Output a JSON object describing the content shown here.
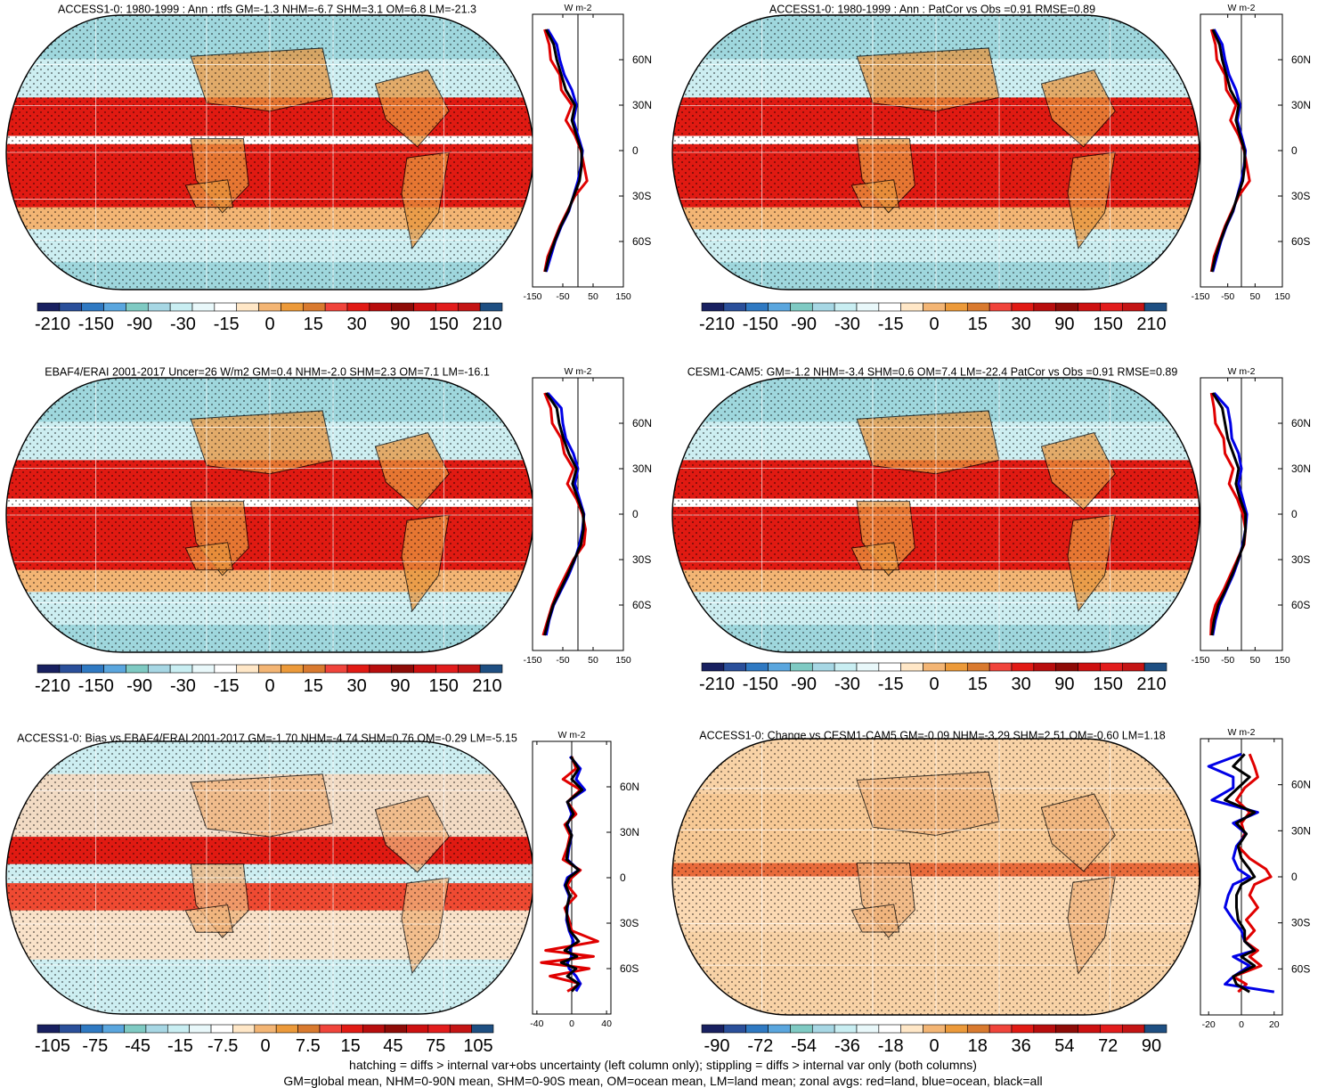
{
  "footer": {
    "line1": "hatching = diffs > internal var+obs uncertainty (left column only); stippling = diffs > internal var only (both columns)",
    "line2": "GM=global mean, NHM=0-90N mean, SHM=0-90S mean, OM=ocean mean, LM=land mean; zonal avgs: red=land, blue=ocean, black=all"
  },
  "chart_data": [
    {
      "type": "heatmap",
      "title": "ACCESS1-0: 1980-1999 : Ann : rtfs GM=-1.3 NHM=-6.7 SHM=3.1 OM=6.8 LM=-21.3",
      "colorbar_labels": [
        "-210",
        "-150",
        "-90",
        "-30",
        "-15",
        "0",
        "15",
        "30",
        "90",
        "150",
        "210"
      ],
      "zonal_unit": "W m-2",
      "zonal_xticks": [
        "-150",
        "-50",
        "50",
        "150"
      ],
      "zonal_xlim": [
        -150,
        150
      ],
      "lat_labels": [
        "60N",
        "30N",
        "0",
        "30S",
        "60S"
      ],
      "zonal_series": [
        {
          "color": "#e00000",
          "lat": [
            80,
            70,
            60,
            50,
            40,
            30,
            20,
            10,
            0,
            -10,
            -20,
            -30,
            -40,
            -50,
            -60,
            -70,
            -80
          ],
          "values": [
            -110,
            -95,
            -90,
            -60,
            -55,
            -20,
            -40,
            -10,
            10,
            20,
            30,
            -10,
            -35,
            -60,
            -80,
            -100,
            -110
          ]
        },
        {
          "color": "#0000e6",
          "lat": [
            80,
            70,
            60,
            50,
            40,
            30,
            20,
            10,
            0,
            -10,
            -20,
            -30,
            -40,
            -50,
            -60,
            -70,
            -80
          ],
          "values": [
            -100,
            -70,
            -60,
            -45,
            -20,
            -5,
            -15,
            0,
            15,
            10,
            0,
            -15,
            -30,
            -55,
            -75,
            -90,
            -105
          ]
        },
        {
          "color": "#000000",
          "lat": [
            80,
            70,
            60,
            50,
            40,
            30,
            20,
            10,
            0,
            -10,
            -20,
            -30,
            -40,
            -50,
            -60,
            -70,
            -80
          ],
          "values": [
            -105,
            -80,
            -70,
            -55,
            -40,
            -10,
            -20,
            -5,
            12,
            12,
            5,
            -14,
            -32,
            -57,
            -77,
            -95,
            -108
          ]
        }
      ]
    },
    {
      "type": "heatmap",
      "title": "ACCESS1-0: 1980-1999 : Ann : PatCor vs Obs =0.91 RMSE=0.89",
      "colorbar_labels": [
        "-210",
        "-150",
        "-90",
        "-30",
        "-15",
        "0",
        "15",
        "30",
        "90",
        "150",
        "210"
      ],
      "zonal_unit": "W m-2",
      "zonal_xticks": [
        "-150",
        "-50",
        "50",
        "150"
      ],
      "zonal_xlim": [
        -150,
        150
      ],
      "lat_labels": [
        "60N",
        "30N",
        "0",
        "30S",
        "60S"
      ],
      "zonal_series": [
        {
          "color": "#e00000",
          "lat": [
            80,
            70,
            60,
            50,
            40,
            30,
            20,
            10,
            0,
            -10,
            -20,
            -30,
            -40,
            -50,
            -60,
            -70,
            -80
          ],
          "values": [
            -110,
            -95,
            -90,
            -60,
            -55,
            -20,
            -40,
            -10,
            10,
            20,
            30,
            -10,
            -35,
            -60,
            -80,
            -100,
            -110
          ]
        },
        {
          "color": "#0000e6",
          "lat": [
            80,
            70,
            60,
            50,
            40,
            30,
            20,
            10,
            0,
            -10,
            -20,
            -30,
            -40,
            -50,
            -60,
            -70,
            -80
          ],
          "values": [
            -100,
            -70,
            -60,
            -45,
            -20,
            -5,
            -15,
            0,
            15,
            10,
            0,
            -15,
            -30,
            -55,
            -75,
            -90,
            -105
          ]
        },
        {
          "color": "#000000",
          "lat": [
            80,
            70,
            60,
            50,
            40,
            30,
            20,
            10,
            0,
            -10,
            -20,
            -30,
            -40,
            -50,
            -60,
            -70,
            -80
          ],
          "values": [
            -105,
            -80,
            -70,
            -55,
            -40,
            -10,
            -20,
            -5,
            12,
            12,
            5,
            -14,
            -32,
            -57,
            -77,
            -95,
            -108
          ]
        }
      ]
    },
    {
      "type": "heatmap",
      "title": "EBAF4/ERAI 2001-2017 Uncer=26 W/m2 GM=0.4 NHM=-2.0 SHM=2.3 OM=7.1 LM=-16.1",
      "colorbar_labels": [
        "-210",
        "-150",
        "-90",
        "-30",
        "-15",
        "0",
        "15",
        "30",
        "90",
        "150",
        "210"
      ],
      "zonal_unit": "W m-2",
      "zonal_xticks": [
        "-150",
        "-50",
        "50",
        "150"
      ],
      "zonal_xlim": [
        -150,
        150
      ],
      "lat_labels": [
        "60N",
        "30N",
        "0",
        "30S",
        "60S"
      ],
      "zonal_series": [
        {
          "color": "#e00000",
          "lat": [
            80,
            70,
            60,
            50,
            40,
            30,
            20,
            10,
            0,
            -10,
            -20,
            -30,
            -40,
            -50,
            -60,
            -70,
            -80
          ],
          "values": [
            -110,
            -90,
            -85,
            -55,
            -45,
            -15,
            -35,
            -5,
            15,
            25,
            20,
            -15,
            -40,
            -65,
            -85,
            -100,
            -115
          ]
        },
        {
          "color": "#0000e6",
          "lat": [
            80,
            70,
            60,
            50,
            40,
            30,
            20,
            10,
            0,
            -10,
            -20,
            -30,
            -40,
            -50,
            -60,
            -70,
            -80
          ],
          "values": [
            -100,
            -55,
            -50,
            -40,
            -15,
            0,
            -10,
            5,
            20,
            15,
            5,
            -10,
            -30,
            -55,
            -80,
            -95,
            -105
          ]
        },
        {
          "color": "#000000",
          "lat": [
            80,
            70,
            60,
            50,
            40,
            30,
            20,
            10,
            0,
            -10,
            -20,
            -30,
            -40,
            -50,
            -60,
            -70,
            -80
          ],
          "values": [
            -105,
            -70,
            -62,
            -48,
            -30,
            -5,
            -18,
            0,
            18,
            18,
            10,
            -12,
            -34,
            -58,
            -82,
            -97,
            -110
          ]
        }
      ]
    },
    {
      "type": "heatmap",
      "title": "CESM1-CAM5: GM=-1.2 NHM=-3.4 SHM=0.6 OM=7.4 LM=-22.4 PatCor vs Obs =0.91 RMSE=0.89",
      "colorbar_labels": [
        "-210",
        "-150",
        "-90",
        "-30",
        "-15",
        "0",
        "15",
        "30",
        "90",
        "150",
        "210"
      ],
      "zonal_unit": "W m-2",
      "zonal_xticks": [
        "-150",
        "-50",
        "50",
        "150"
      ],
      "zonal_xlim": [
        -150,
        150
      ],
      "lat_labels": [
        "60N",
        "30N",
        "0",
        "30S",
        "60S"
      ],
      "zonal_series": [
        {
          "color": "#e00000",
          "lat": [
            80,
            70,
            60,
            50,
            40,
            30,
            20,
            10,
            0,
            -10,
            -20,
            -30,
            -40,
            -50,
            -60,
            -70,
            -80
          ],
          "values": [
            -110,
            -100,
            -95,
            -65,
            -60,
            -30,
            -45,
            -15,
            5,
            15,
            10,
            -15,
            -40,
            -65,
            -95,
            -110,
            -112
          ]
        },
        {
          "color": "#0000e6",
          "lat": [
            80,
            70,
            60,
            50,
            40,
            30,
            20,
            10,
            0,
            -10,
            -20,
            -30,
            -40,
            -50,
            -60,
            -70,
            -80
          ],
          "values": [
            -100,
            -50,
            -40,
            -35,
            -10,
            0,
            -10,
            5,
            20,
            15,
            5,
            -10,
            -30,
            -55,
            -80,
            -95,
            -105
          ]
        },
        {
          "color": "#000000",
          "lat": [
            80,
            70,
            60,
            50,
            40,
            30,
            20,
            10,
            0,
            -10,
            -20,
            -30,
            -40,
            -50,
            -60,
            -70,
            -80
          ],
          "values": [
            -105,
            -70,
            -60,
            -50,
            -30,
            -10,
            -20,
            -5,
            15,
            15,
            8,
            -12,
            -34,
            -58,
            -85,
            -100,
            -108
          ]
        }
      ]
    },
    {
      "type": "heatmap",
      "title": "ACCESS1-0: Bias vs EBAF4/ERAI 2001-2017 GM=-1.70 NHM=-4.74 SHM=0.76 OM=-0.29 LM=-5.15",
      "colorbar_labels": [
        "-105",
        "-75",
        "-45",
        "-15",
        "-7.5",
        "0",
        "7.5",
        "15",
        "45",
        "75",
        "105"
      ],
      "zonal_unit": "W m-2",
      "zonal_xticks": [
        "-40",
        "0",
        "40"
      ],
      "zonal_xlim": [
        -45,
        45
      ],
      "lat_labels": [
        "60N",
        "30N",
        "0",
        "30S",
        "60S"
      ],
      "zonal_series": [
        {
          "color": "#e00000",
          "lat": [
            80,
            72,
            65,
            58,
            50,
            42,
            35,
            28,
            20,
            12,
            5,
            0,
            -5,
            -12,
            -20,
            -28,
            -35,
            -42,
            -48,
            -52,
            -56,
            -60,
            -65,
            -70,
            -75
          ],
          "values": [
            0,
            5,
            -10,
            10,
            -5,
            5,
            -8,
            -2,
            -5,
            -10,
            10,
            0,
            -5,
            5,
            -8,
            -3,
            0,
            30,
            -30,
            25,
            -35,
            20,
            -25,
            10,
            -5
          ]
        },
        {
          "color": "#0000e6",
          "lat": [
            80,
            72,
            65,
            58,
            50,
            42,
            35,
            28,
            20,
            12,
            5,
            0,
            -5,
            -12,
            -20,
            -28,
            -35,
            -42,
            -48,
            -52,
            -56,
            -60,
            -65,
            -70,
            -75
          ],
          "values": [
            -2,
            10,
            5,
            15,
            -5,
            0,
            -5,
            0,
            -3,
            -5,
            8,
            -5,
            -8,
            -3,
            -5,
            -6,
            -3,
            2,
            -2,
            0,
            -5,
            -3,
            5,
            10,
            5
          ]
        },
        {
          "color": "#000000",
          "lat": [
            80,
            72,
            65,
            58,
            50,
            42,
            35,
            28,
            20,
            12,
            5,
            0,
            -5,
            -12,
            -20,
            -28,
            -35,
            -42,
            -48,
            -52,
            -56,
            -60,
            -65,
            -70,
            -75
          ],
          "values": [
            -1,
            8,
            0,
            12,
            -5,
            2,
            -6,
            0,
            -4,
            -6,
            8,
            -3,
            -7,
            -2,
            -6,
            -5,
            -2,
            8,
            -8,
            6,
            -12,
            5,
            -5,
            8,
            0
          ]
        }
      ]
    },
    {
      "type": "heatmap",
      "title": "ACCESS1-0: Change vs CESM1-CAM5 GM=-0.09 NHM=-3.29 SHM=2.51 OM=-0.60 LM=1.18",
      "colorbar_labels": [
        "-90",
        "-72",
        "-54",
        "-36",
        "-18",
        "0",
        "18",
        "36",
        "54",
        "72",
        "90"
      ],
      "zonal_unit": "W m-2",
      "zonal_xticks": [
        "-20",
        "0",
        "20"
      ],
      "zonal_xlim": [
        -25,
        25
      ],
      "lat_labels": [
        "60N",
        "30N",
        "0",
        "30S",
        "60S"
      ],
      "zonal_series": [
        {
          "color": "#e00000",
          "lat": [
            80,
            72,
            65,
            58,
            50,
            42,
            35,
            28,
            20,
            12,
            5,
            0,
            -5,
            -12,
            -20,
            -28,
            -35,
            -42,
            -48,
            -52,
            -58,
            -65,
            -70,
            -75
          ],
          "values": [
            5,
            8,
            10,
            2,
            -3,
            5,
            0,
            2,
            -2,
            5,
            15,
            18,
            8,
            5,
            10,
            3,
            8,
            2,
            10,
            5,
            12,
            -5,
            3,
            -2
          ]
        },
        {
          "color": "#0000e6",
          "lat": [
            80,
            72,
            65,
            58,
            50,
            42,
            35,
            28,
            20,
            12,
            5,
            0,
            -5,
            -12,
            -20,
            -28,
            -35,
            -42,
            -48,
            -52,
            -58,
            -65,
            -70,
            -75
          ],
          "values": [
            0,
            -20,
            -5,
            -5,
            -18,
            10,
            -5,
            3,
            -3,
            -5,
            -2,
            5,
            -5,
            -8,
            -10,
            -5,
            0,
            2,
            8,
            -5,
            5,
            -5,
            -10,
            20
          ]
        },
        {
          "color": "#000000",
          "lat": [
            80,
            72,
            65,
            58,
            50,
            42,
            35,
            28,
            20,
            12,
            5,
            0,
            -5,
            -12,
            -20,
            -28,
            -35,
            -42,
            -48,
            -52,
            -58,
            -65,
            -70,
            -75
          ],
          "values": [
            2,
            -5,
            5,
            -2,
            -10,
            8,
            -3,
            3,
            -2,
            0,
            5,
            8,
            0,
            -3,
            -3,
            -2,
            2,
            2,
            8,
            0,
            8,
            -5,
            -3,
            5
          ]
        }
      ]
    }
  ],
  "colormap": [
    "#182060",
    "#2a4f9a",
    "#2f79c2",
    "#5aa6de",
    "#7fcac3",
    "#a7d7e4",
    "#c9eef2",
    "#e9f8fa",
    "#ffffff",
    "#ffe7c7",
    "#f3b574",
    "#ec9a3a",
    "#d97a2f",
    "#f0443b",
    "#e11a14",
    "#b80d0d",
    "#8e0b07",
    "#cd1010",
    "#e21c1c",
    "#c41414",
    "#1e4f82"
  ],
  "map_colors": {
    "ocean_low": "#9fd7dd",
    "ocean_pale": "#cdeef1",
    "warm_orange": "#e8953d",
    "red": "#e01a12",
    "pale_orange": "#f8d2a6",
    "land_line": "#000000"
  }
}
